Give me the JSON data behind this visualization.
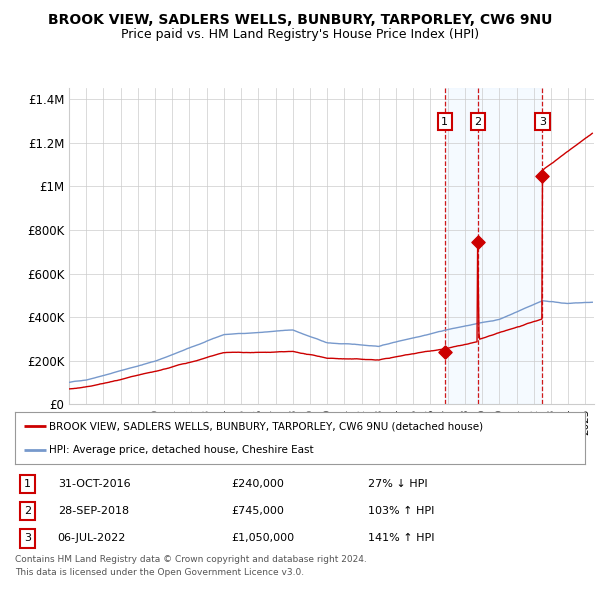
{
  "title": "BROOK VIEW, SADLERS WELLS, BUNBURY, TARPORLEY, CW6 9NU",
  "subtitle": "Price paid vs. HM Land Registry's House Price Index (HPI)",
  "legend_line1": "BROOK VIEW, SADLERS WELLS, BUNBURY, TARPORLEY, CW6 9NU (detached house)",
  "legend_line2": "HPI: Average price, detached house, Cheshire East",
  "footer1": "Contains HM Land Registry data © Crown copyright and database right 2024.",
  "footer2": "This data is licensed under the Open Government Licence v3.0.",
  "transactions": [
    {
      "num": 1,
      "date": "31-OCT-2016",
      "price": 240000,
      "rel": "27% ↓ HPI",
      "date_decimal": 2016.833
    },
    {
      "num": 2,
      "date": "28-SEP-2018",
      "price": 745000,
      "rel": "103% ↑ HPI",
      "date_decimal": 2018.747
    },
    {
      "num": 3,
      "date": "06-JUL-2022",
      "price": 1050000,
      "rel": "141% ↑ HPI",
      "date_decimal": 2022.508
    }
  ],
  "hpi_color": "#7799cc",
  "price_color": "#cc0000",
  "shade_color": "#ddeeff",
  "grid_color": "#cccccc",
  "ylim": [
    0,
    1450000
  ],
  "yticks": [
    0,
    200000,
    400000,
    600000,
    800000,
    1000000,
    1200000,
    1400000
  ],
  "ytick_labels": [
    "£0",
    "£200K",
    "£400K",
    "£600K",
    "£800K",
    "£1M",
    "£1.2M",
    "£1.4M"
  ],
  "xlim_start": 1995.0,
  "xlim_end": 2025.5,
  "title_fontsize": 10,
  "subtitle_fontsize": 9
}
